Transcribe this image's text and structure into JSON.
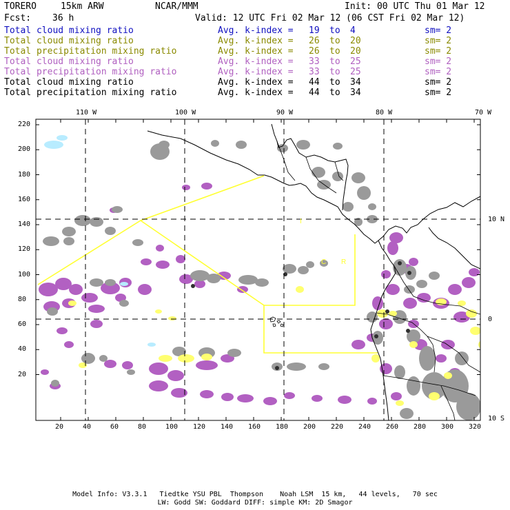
{
  "header": {
    "model_name": "TORERO",
    "resolution": "15km ARW",
    "center": "NCAR/MMM",
    "init_label": "Init: 00 UTC Thu 01 Mar 12",
    "fcst_label": "Fcst:",
    "fcst_value": "36 h",
    "valid_label": "Valid: 12 UTC Fri 02 Mar 12 (06 CST Fri 02 Mar 12)"
  },
  "colors": {
    "blue": "#1010c0",
    "olive": "#8a8a00",
    "orchid": "#b060c0",
    "black": "#000000",
    "purple_fill": "#b260c2",
    "gray_fill": "#9a9a9a",
    "yellow_fill": "#ffff70",
    "cyan_fill": "#b8ecff",
    "outline": "#ffff33"
  },
  "legend": [
    {
      "name": "Total cloud mixing ratio",
      "index_label": "Avg. k-index =",
      "k_from": "19",
      "to": "to",
      "k_to": "4",
      "sm": "sm= 2",
      "color": "#1010c0"
    },
    {
      "name": "Total cloud mixing ratio",
      "index_label": "Avg. k-index =",
      "k_from": "26",
      "to": "to",
      "k_to": "20",
      "sm": "sm= 2",
      "color": "#8a8a00"
    },
    {
      "name": "Total precipitation mixing ratio",
      "index_label": "Avg. k-index =",
      "k_from": "26",
      "to": "to",
      "k_to": "20",
      "sm": "sm= 2",
      "color": "#8a8a00"
    },
    {
      "name": "Total cloud mixing ratio",
      "index_label": "Avg. k-index =",
      "k_from": "33",
      "to": "to",
      "k_to": "25",
      "sm": "sm= 2",
      "color": "#b060c0"
    },
    {
      "name": "Total precipitation mixing ratio",
      "index_label": "Avg. k-index =",
      "k_from": "33",
      "to": "to",
      "k_to": "25",
      "sm": "sm= 2",
      "color": "#b060c0"
    },
    {
      "name": "Total cloud mixing ratio",
      "index_label": "Avg. k-index =",
      "k_from": "44",
      "to": "to",
      "k_to": "34",
      "sm": "sm= 2",
      "color": "#000000"
    },
    {
      "name": "Total precipitation mixing ratio",
      "index_label": "Avg. k-index =",
      "k_from": "44",
      "to": "to",
      "k_to": "34",
      "sm": "sm= 2",
      "color": "#000000"
    }
  ],
  "axes": {
    "longitude_labels": [
      "110 W",
      "100 W",
      "90 W",
      "80 W",
      "70 W"
    ],
    "latitude_labels": [
      "10 N",
      "0",
      "10 S"
    ],
    "x_grid_ticks": [
      "20",
      "40",
      "60",
      "80",
      "100",
      "120",
      "140",
      "160",
      "180",
      "200",
      "220",
      "240",
      "260",
      "280",
      "300",
      "320"
    ],
    "y_grid_ticks": [
      "220",
      "200",
      "180",
      "160",
      "140",
      "120",
      "100",
      "80",
      "60",
      "40",
      "20"
    ]
  },
  "map_labels": {
    "region_i": "I",
    "region_cr_c": "C",
    "region_cr_r": "R"
  },
  "footer": {
    "line1": "Model Info: V3.3.1   Tiedtke YSU PBL  Thompson    Noah LSM  15 km,   44 levels,   70 sec",
    "line2": "LW: Godd SW: Goddard DIFF: simple KM: 2D Smagor"
  }
}
